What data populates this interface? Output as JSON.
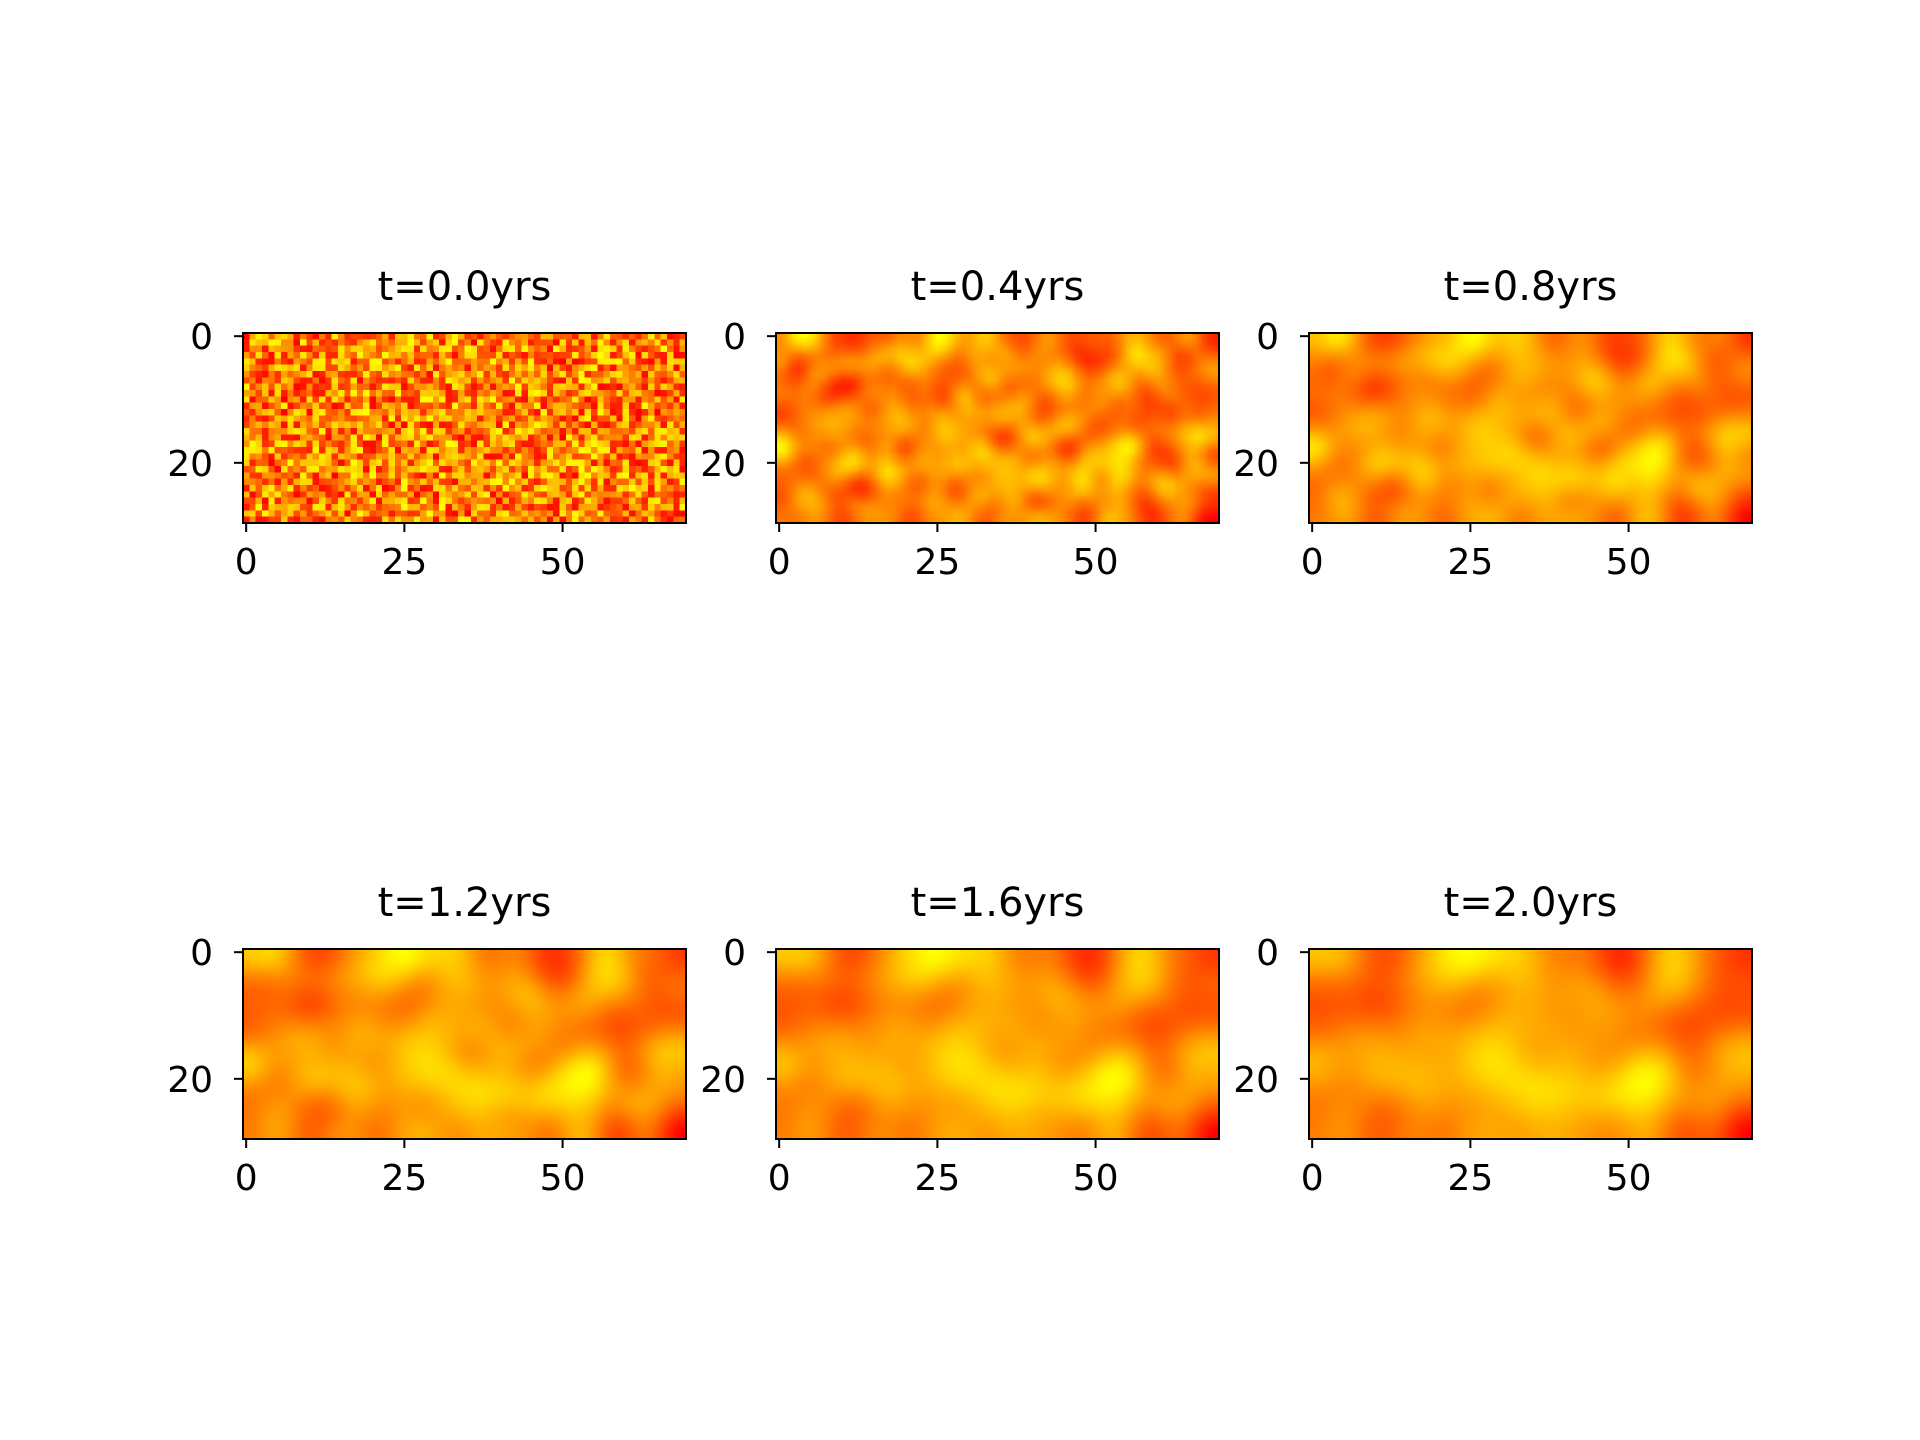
{
  "chart_data": [
    {
      "type": "heatmap",
      "title": "t=0.0yrs",
      "grid_size": [
        30,
        70
      ],
      "colormap": "autumn",
      "smoothing_passes": 0,
      "x_ticks": [
        0,
        25,
        50
      ],
      "y_ticks": [
        0,
        20
      ],
      "xlim": [
        -0.5,
        69.5
      ],
      "ylim": [
        29.5,
        -0.5
      ],
      "grid": false
    },
    {
      "type": "heatmap",
      "title": "t=0.4yrs",
      "grid_size": [
        30,
        70
      ],
      "colormap": "autumn",
      "smoothing_passes": 3,
      "x_ticks": [
        0,
        25,
        50
      ],
      "y_ticks": [
        0,
        20
      ],
      "xlim": [
        -0.5,
        69.5
      ],
      "ylim": [
        29.5,
        -0.5
      ],
      "grid": false
    },
    {
      "type": "heatmap",
      "title": "t=0.8yrs",
      "grid_size": [
        30,
        70
      ],
      "colormap": "autumn",
      "smoothing_passes": 7,
      "x_ticks": [
        0,
        25,
        50
      ],
      "y_ticks": [
        0,
        20
      ],
      "xlim": [
        -0.5,
        69.5
      ],
      "ylim": [
        29.5,
        -0.5
      ],
      "grid": false
    },
    {
      "type": "heatmap",
      "title": "t=1.2yrs",
      "grid_size": [
        30,
        70
      ],
      "colormap": "autumn",
      "smoothing_passes": 11,
      "x_ticks": [
        0,
        25,
        50
      ],
      "y_ticks": [
        0,
        20
      ],
      "xlim": [
        -0.5,
        69.5
      ],
      "ylim": [
        29.5,
        -0.5
      ],
      "grid": false
    },
    {
      "type": "heatmap",
      "title": "t=1.6yrs",
      "grid_size": [
        30,
        70
      ],
      "colormap": "autumn",
      "smoothing_passes": 14,
      "x_ticks": [
        0,
        25,
        50
      ],
      "y_ticks": [
        0,
        20
      ],
      "xlim": [
        -0.5,
        69.5
      ],
      "ylim": [
        29.5,
        -0.5
      ],
      "grid": false
    },
    {
      "type": "heatmap",
      "title": "t=2.0yrs",
      "grid_size": [
        30,
        70
      ],
      "colormap": "autumn",
      "smoothing_passes": 17,
      "x_ticks": [
        0,
        25,
        50
      ],
      "y_ticks": [
        0,
        20
      ],
      "xlim": [
        -0.5,
        69.5
      ],
      "ylim": [
        29.5,
        -0.5
      ],
      "grid": false
    }
  ]
}
